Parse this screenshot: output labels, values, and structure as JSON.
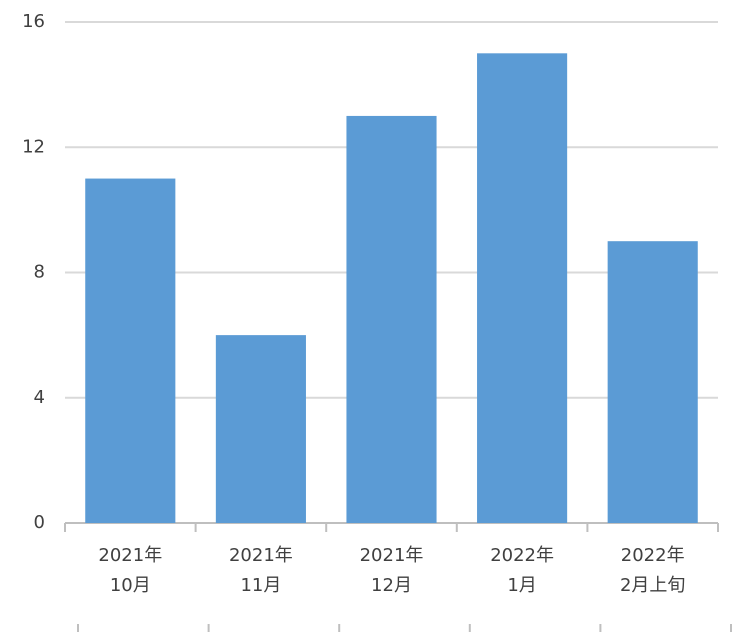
{
  "chart_data": {
    "type": "bar",
    "categories": [
      [
        "2021年",
        "10月"
      ],
      [
        "2021年",
        "11月"
      ],
      [
        "2021年",
        "12月"
      ],
      [
        "2022年",
        "1月"
      ],
      [
        "2022年",
        "2月上旬"
      ]
    ],
    "values": [
      11,
      6,
      13,
      15,
      9
    ],
    "color": "#5b9bd5",
    "ylim": [
      0,
      16
    ],
    "yticks": [
      0,
      4,
      8,
      12,
      16
    ],
    "grid": true
  }
}
